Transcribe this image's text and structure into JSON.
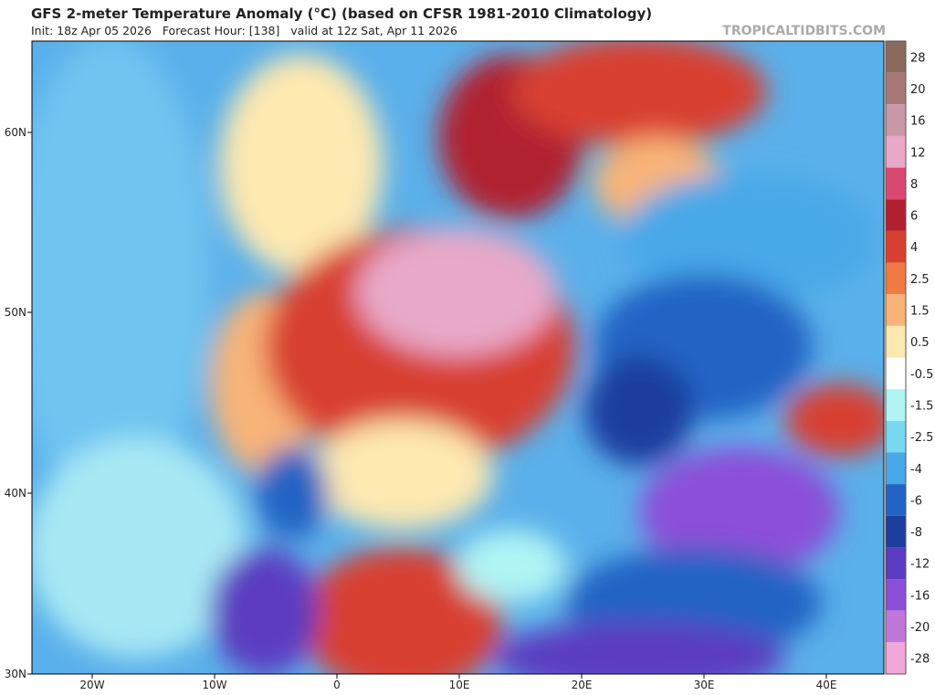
{
  "header": {
    "title": "GFS 2-meter Temperature Anomaly (°C) (based on CFSR 1981-2010 Climatology)",
    "subtitle": "Init: 18z Apr 05 2026   Forecast Hour: [138]   valid at 12z Sat, Apr 11 2026",
    "credit": "TROPICALTIDBITS.COM"
  },
  "map": {
    "lat_labels": [
      "60N",
      "50N",
      "40N",
      "30N"
    ],
    "lon_labels": [
      "20W",
      "10W",
      "0",
      "10E",
      "20E",
      "30E",
      "40E"
    ]
  },
  "colorbar": {
    "labels": [
      28,
      20,
      16,
      12,
      8,
      6,
      4,
      2.5,
      1.5,
      0.5,
      -0.5,
      -1.5,
      -2.5,
      -4,
      -6,
      -8,
      -12,
      -16,
      -20,
      -28
    ],
    "colors": [
      "#8a6a5c",
      "#a87878",
      "#c898a8",
      "#e8a8c8",
      "#d84870",
      "#b02030",
      "#d84030",
      "#f07c44",
      "#f8b478",
      "#fde8b0",
      "#ffffff",
      "#b0f4f4",
      "#78d8f0",
      "#48a8e8",
      "#2264c4",
      "#1c3e9e",
      "#5c3cc0",
      "#8c50d8",
      "#c078d8",
      "#f0a8d8"
    ]
  }
}
